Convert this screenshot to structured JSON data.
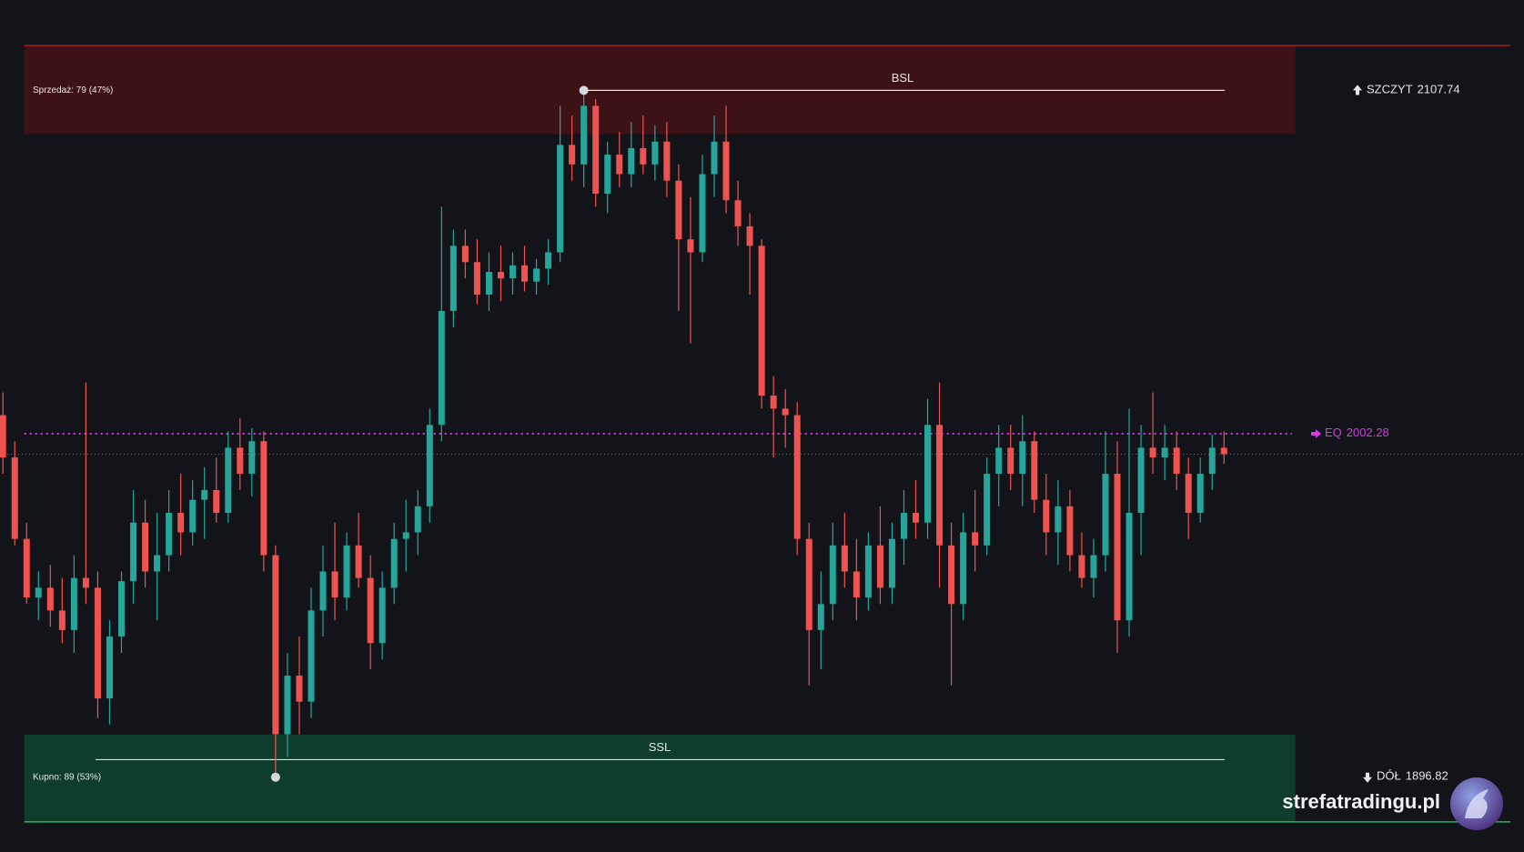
{
  "chart_data": {
    "type": "candlestick",
    "up_color": "#26a69a",
    "down_color": "#ef5350",
    "ylim": [
      1873.84,
      2135.49
    ],
    "candles": [
      [
        2008,
        2015,
        1990,
        1995
      ],
      [
        1995,
        2000,
        1968,
        1970
      ],
      [
        1970,
        1975,
        1950,
        1952
      ],
      [
        1952,
        1960,
        1945,
        1955
      ],
      [
        1955,
        1962,
        1943,
        1948
      ],
      [
        1948,
        1958,
        1938,
        1942
      ],
      [
        1942,
        1965,
        1935,
        1958
      ],
      [
        1958,
        2018,
        1950,
        1955
      ],
      [
        1955,
        1960,
        1915,
        1921
      ],
      [
        1921,
        1945,
        1913,
        1940
      ],
      [
        1940,
        1960,
        1935,
        1957
      ],
      [
        1957,
        1985,
        1950,
        1975
      ],
      [
        1975,
        1982,
        1955,
        1960
      ],
      [
        1960,
        1978,
        1945,
        1965
      ],
      [
        1965,
        1985,
        1960,
        1978
      ],
      [
        1978,
        1990,
        1965,
        1972
      ],
      [
        1972,
        1988,
        1968,
        1982
      ],
      [
        1982,
        1992,
        1970,
        1985
      ],
      [
        1985,
        1995,
        1975,
        1978
      ],
      [
        1978,
        2003,
        1975,
        1998
      ],
      [
        1998,
        2007,
        1985,
        1990
      ],
      [
        1990,
        2004,
        1983,
        2000
      ],
      [
        2000,
        2003,
        1960,
        1965
      ],
      [
        1965,
        1968,
        1897,
        1910
      ],
      [
        1910,
        1935,
        1903,
        1928
      ],
      [
        1928,
        1940,
        1910,
        1920
      ],
      [
        1920,
        1955,
        1915,
        1948
      ],
      [
        1948,
        1968,
        1940,
        1960
      ],
      [
        1960,
        1975,
        1945,
        1952
      ],
      [
        1952,
        1972,
        1948,
        1968
      ],
      [
        1968,
        1978,
        1955,
        1958
      ],
      [
        1958,
        1965,
        1930,
        1938
      ],
      [
        1938,
        1960,
        1933,
        1955
      ],
      [
        1955,
        1975,
        1950,
        1970
      ],
      [
        1970,
        1982,
        1960,
        1972
      ],
      [
        1972,
        1985,
        1965,
        1980
      ],
      [
        1980,
        2010,
        1975,
        2005
      ],
      [
        2005,
        2072,
        2000,
        2040
      ],
      [
        2040,
        2065,
        2035,
        2060
      ],
      [
        2060,
        2065,
        2050,
        2055
      ],
      [
        2055,
        2062,
        2042,
        2045
      ],
      [
        2045,
        2058,
        2040,
        2052
      ],
      [
        2052,
        2060,
        2043,
        2050
      ],
      [
        2050,
        2058,
        2045,
        2054
      ],
      [
        2054,
        2060,
        2046,
        2049
      ],
      [
        2049,
        2056,
        2045,
        2053
      ],
      [
        2053,
        2062,
        2048,
        2058
      ],
      [
        2058,
        2103,
        2055,
        2091
      ],
      [
        2091,
        2100,
        2080,
        2085
      ],
      [
        2085,
        2108,
        2078,
        2103
      ],
      [
        2103,
        2105,
        2072,
        2076
      ],
      [
        2076,
        2092,
        2070,
        2088
      ],
      [
        2088,
        2095,
        2078,
        2082
      ],
      [
        2082,
        2098,
        2078,
        2090
      ],
      [
        2090,
        2100,
        2082,
        2085
      ],
      [
        2085,
        2097,
        2080,
        2092
      ],
      [
        2092,
        2098,
        2075,
        2080
      ],
      [
        2080,
        2085,
        2040,
        2062
      ],
      [
        2062,
        2075,
        2030,
        2058
      ],
      [
        2058,
        2088,
        2055,
        2082
      ],
      [
        2082,
        2100,
        2075,
        2092
      ],
      [
        2092,
        2103,
        2070,
        2074
      ],
      [
        2074,
        2080,
        2060,
        2066
      ],
      [
        2066,
        2070,
        2045,
        2060
      ],
      [
        2060,
        2062,
        2010,
        2014
      ],
      [
        2014,
        2020,
        1995,
        2010
      ],
      [
        2010,
        2016,
        1998,
        2008
      ],
      [
        2008,
        2012,
        1965,
        1970
      ],
      [
        1970,
        1975,
        1925,
        1942
      ],
      [
        1942,
        1960,
        1930,
        1950
      ],
      [
        1950,
        1975,
        1945,
        1968
      ],
      [
        1968,
        1978,
        1955,
        1960
      ],
      [
        1960,
        1970,
        1945,
        1952
      ],
      [
        1952,
        1972,
        1948,
        1968
      ],
      [
        1968,
        1980,
        1950,
        1955
      ],
      [
        1955,
        1975,
        1950,
        1970
      ],
      [
        1970,
        1985,
        1962,
        1978
      ],
      [
        1978,
        1988,
        1970,
        1975
      ],
      [
        1975,
        2013,
        1970,
        2005
      ],
      [
        2005,
        2018,
        1955,
        1968
      ],
      [
        1968,
        1975,
        1925,
        1950
      ],
      [
        1950,
        1978,
        1945,
        1972
      ],
      [
        1972,
        1985,
        1960,
        1968
      ],
      [
        1968,
        1995,
        1965,
        1990
      ],
      [
        1990,
        2005,
        1980,
        1998
      ],
      [
        1998,
        2005,
        1985,
        1990
      ],
      [
        1990,
        2008,
        1980,
        2000
      ],
      [
        2000,
        2003,
        1978,
        1982
      ],
      [
        1982,
        1990,
        1965,
        1972
      ],
      [
        1972,
        1988,
        1962,
        1980
      ],
      [
        1980,
        1985,
        1960,
        1965
      ],
      [
        1965,
        1972,
        1955,
        1958
      ],
      [
        1958,
        1970,
        1952,
        1965
      ],
      [
        1965,
        2003,
        1960,
        1990
      ],
      [
        1990,
        2000,
        1935,
        1945
      ],
      [
        1945,
        2010,
        1940,
        1978
      ],
      [
        1978,
        2005,
        1965,
        1998
      ],
      [
        1998,
        2015,
        1990,
        1995
      ],
      [
        1995,
        2005,
        1988,
        1998
      ],
      [
        1998,
        2003,
        1985,
        1990
      ],
      [
        1990,
        1995,
        1970,
        1978
      ],
      [
        1978,
        1995,
        1975,
        1990
      ],
      [
        1990,
        2002,
        1985,
        1998
      ],
      [
        1998,
        2003,
        1993,
        1996
      ]
    ],
    "zones": [
      {
        "name": "BSL",
        "label": "Sprzedaż: 79 (47%)",
        "range": [
          2094.3,
          2121.5
        ],
        "line": 2107.74,
        "color": "#3d1216",
        "edge": "#b0222a"
      },
      {
        "name": "SSL",
        "label": "Kupno: 89 (53%)",
        "range": [
          1883.1,
          1909.9
        ],
        "line": 1902.2,
        "color": "#0f3d2b",
        "edge": "#2ecc71"
      }
    ],
    "levels": {
      "top": {
        "label": "SZCZYT",
        "value": 2107.74
      },
      "equilibrium": {
        "label": "EQ",
        "value": 2002.28,
        "color": "#d63be6"
      },
      "bottom": {
        "label": "DÓŁ",
        "value": 1896.82
      }
    },
    "watermark": "strefatradingu.pl"
  }
}
